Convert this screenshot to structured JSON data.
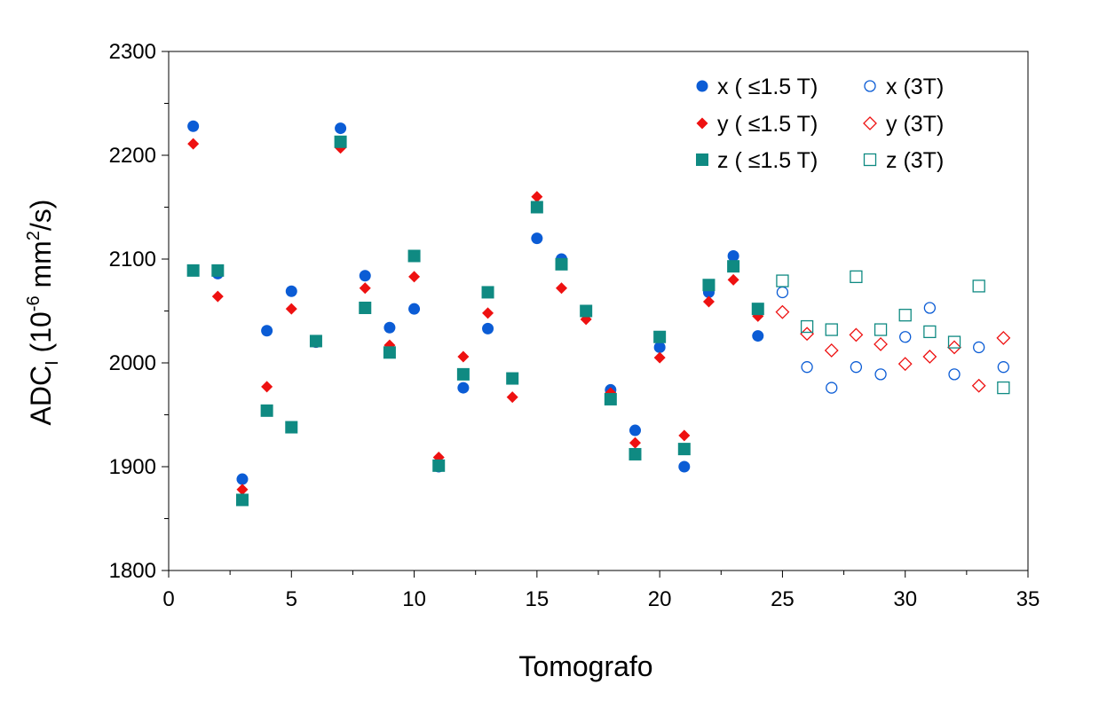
{
  "chart_data": {
    "type": "scatter",
    "title": "",
    "xlabel": "Tomografo",
    "ylabel": {
      "main": "ADC",
      "sub": "I",
      "unit_open": " (10",
      "unit_exp": "-6",
      "unit_mid": " mm",
      "unit_exp2": "2",
      "unit_close": "/s)"
    },
    "xlim": [
      0,
      35
    ],
    "ylim": [
      1800,
      2300
    ],
    "xticks": [
      0,
      5,
      10,
      15,
      20,
      25,
      30,
      35
    ],
    "yticks": [
      1800,
      1900,
      2000,
      2100,
      2200,
      2300
    ],
    "grid": false,
    "legend_position": "top-right",
    "series": [
      {
        "name": "x ( ≤1.5 T)",
        "marker": "circle-filled",
        "color": "#0b5cd5",
        "x": [
          1,
          2,
          3,
          4,
          5,
          6,
          7,
          8,
          9,
          10,
          11,
          12,
          13,
          14,
          15,
          16,
          17,
          18,
          19,
          20,
          21,
          22,
          23,
          24
        ],
        "y": [
          2228,
          2086,
          1888,
          2031,
          2069,
          2020,
          2226,
          2084,
          2034,
          2052,
          1900,
          1976,
          2033,
          1985,
          2120,
          2100,
          2048,
          1974,
          1935,
          2015,
          1900,
          2068,
          2103,
          2026
        ]
      },
      {
        "name": "y ( ≤1.5 T)",
        "marker": "diamond-filled",
        "color": "#ee1111",
        "x": [
          1,
          2,
          3,
          4,
          5,
          6,
          7,
          8,
          9,
          10,
          11,
          12,
          13,
          14,
          15,
          16,
          17,
          18,
          19,
          20,
          21,
          22,
          23,
          24
        ],
        "y": [
          2211,
          2064,
          1878,
          1977,
          2052,
          2020,
          2207,
          2072,
          2017,
          2083,
          1909,
          2006,
          2048,
          1967,
          2160,
          2072,
          2042,
          1971,
          1923,
          2005,
          1930,
          2059,
          2080,
          2045
        ]
      },
      {
        "name": "z ( ≤1.5 T)",
        "marker": "square-filled",
        "color": "#0f8a82",
        "x": [
          1,
          2,
          3,
          4,
          5,
          6,
          7,
          8,
          9,
          10,
          11,
          12,
          13,
          14,
          15,
          16,
          17,
          18,
          19,
          20,
          21,
          22,
          23,
          24
        ],
        "y": [
          2089,
          2089,
          1868,
          1954,
          1938,
          2021,
          2213,
          2053,
          2010,
          2103,
          1901,
          1989,
          2068,
          1985,
          2150,
          2095,
          2050,
          1965,
          1912,
          2025,
          1917,
          2075,
          2093,
          2052
        ]
      },
      {
        "name": "x (3T)",
        "marker": "circle-open",
        "color": "#0b5cd5",
        "x": [
          25,
          26,
          27,
          28,
          29,
          30,
          31,
          32,
          33,
          34
        ],
        "y": [
          2068,
          1996,
          1976,
          1996,
          1989,
          2025,
          2053,
          1989,
          2015,
          1996
        ]
      },
      {
        "name": "y (3T)",
        "marker": "diamond-open",
        "color": "#ee1111",
        "x": [
          25,
          26,
          27,
          28,
          29,
          30,
          31,
          32,
          33,
          34
        ],
        "y": [
          2049,
          2028,
          2012,
          2027,
          2018,
          1999,
          2006,
          2015,
          1978,
          2024
        ]
      },
      {
        "name": "z (3T)",
        "marker": "square-open",
        "color": "#0f8a82",
        "x": [
          25,
          26,
          27,
          28,
          29,
          30,
          31,
          32,
          33,
          34
        ],
        "y": [
          2079,
          2035,
          2032,
          2083,
          2032,
          2046,
          2030,
          2020,
          2074,
          1976
        ]
      }
    ]
  }
}
